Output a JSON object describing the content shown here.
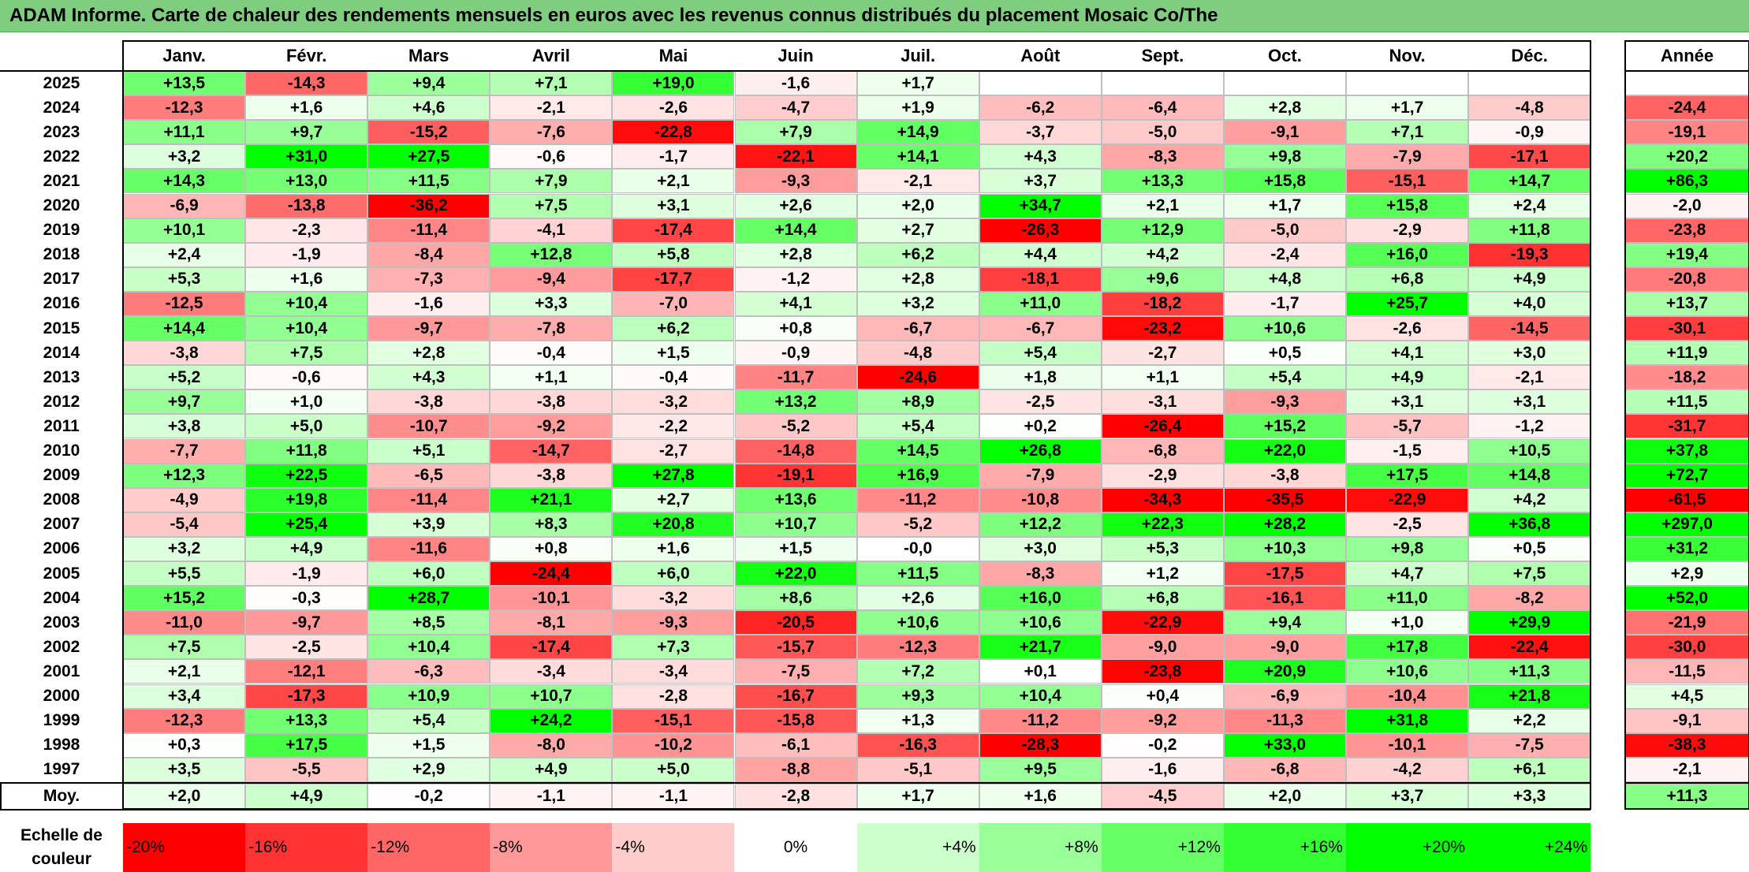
{
  "title": "ADAM Informe. Carte de chaleur des rendements mensuels en euros avec les revenus connus distribués du placement Mosaic Co/The",
  "chart_data": {
    "type": "heatmap",
    "months": [
      "Janv.",
      "Févr.",
      "Mars",
      "Avril",
      "Mai",
      "Juin",
      "Juil.",
      "Août",
      "Sept.",
      "Oct.",
      "Nov.",
      "Déc."
    ],
    "annual_header": "Année",
    "rows": [
      {
        "year": "2025",
        "values": [
          "+13,5",
          "-14,3",
          "+9,4",
          "+7,1",
          "+19,0",
          "-1,6",
          "+1,7",
          "",
          "",
          "",
          "",
          ""
        ],
        "annual": ""
      },
      {
        "year": "2024",
        "values": [
          "-12,3",
          "+1,6",
          "+4,6",
          "-2,1",
          "-2,6",
          "-4,7",
          "+1,9",
          "-6,2",
          "-6,4",
          "+2,8",
          "+1,7",
          "-4,8"
        ],
        "annual": "-24,4"
      },
      {
        "year": "2023",
        "values": [
          "+11,1",
          "+9,7",
          "-15,2",
          "-7,6",
          "-22,8",
          "+7,9",
          "+14,9",
          "-3,7",
          "-5,0",
          "-9,1",
          "+7,1",
          "-0,9"
        ],
        "annual": "-19,1"
      },
      {
        "year": "2022",
        "values": [
          "+3,2",
          "+31,0",
          "+27,5",
          "-0,6",
          "-1,7",
          "-22,1",
          "+14,1",
          "+4,3",
          "-8,3",
          "+9,8",
          "-7,9",
          "-17,1"
        ],
        "annual": "+20,2"
      },
      {
        "year": "2021",
        "values": [
          "+14,3",
          "+13,0",
          "+11,5",
          "+7,9",
          "+2,1",
          "-9,3",
          "-2,1",
          "+3,7",
          "+13,3",
          "+15,8",
          "-15,1",
          "+14,7"
        ],
        "annual": "+86,3"
      },
      {
        "year": "2020",
        "values": [
          "-6,9",
          "-13,8",
          "-36,2",
          "+7,5",
          "+3,1",
          "+2,6",
          "+2,0",
          "+34,7",
          "+2,1",
          "+1,7",
          "+15,8",
          "+2,4"
        ],
        "annual": "-2,0"
      },
      {
        "year": "2019",
        "values": [
          "+10,1",
          "-2,3",
          "-11,4",
          "-4,1",
          "-17,4",
          "+14,4",
          "+2,7",
          "-26,3",
          "+12,9",
          "-5,0",
          "-2,9",
          "+11,8"
        ],
        "annual": "-23,8"
      },
      {
        "year": "2018",
        "values": [
          "+2,4",
          "-1,9",
          "-8,4",
          "+12,8",
          "+5,8",
          "+2,8",
          "+6,2",
          "+4,4",
          "+4,2",
          "-2,4",
          "+16,0",
          "-19,3"
        ],
        "annual": "+19,4"
      },
      {
        "year": "2017",
        "values": [
          "+5,3",
          "+1,6",
          "-7,3",
          "-9,4",
          "-17,7",
          "-1,2",
          "+2,8",
          "-18,1",
          "+9,6",
          "+4,8",
          "+6,8",
          "+4,9"
        ],
        "annual": "-20,8"
      },
      {
        "year": "2016",
        "values": [
          "-12,5",
          "+10,4",
          "-1,6",
          "+3,3",
          "-7,0",
          "+4,1",
          "+3,2",
          "+11,0",
          "-18,2",
          "-1,7",
          "+25,7",
          "+4,0"
        ],
        "annual": "+13,7"
      },
      {
        "year": "2015",
        "values": [
          "+14,4",
          "+10,4",
          "-9,7",
          "-7,8",
          "+6,2",
          "+0,8",
          "-6,7",
          "-6,7",
          "-23,2",
          "+10,6",
          "-2,6",
          "-14,5"
        ],
        "annual": "-30,1"
      },
      {
        "year": "2014",
        "values": [
          "-3,8",
          "+7,5",
          "+2,8",
          "-0,4",
          "+1,5",
          "-0,9",
          "-4,8",
          "+5,4",
          "-2,7",
          "+0,5",
          "+4,1",
          "+3,0"
        ],
        "annual": "+11,9"
      },
      {
        "year": "2013",
        "values": [
          "+5,2",
          "-0,6",
          "+4,3",
          "+1,1",
          "-0,4",
          "-11,7",
          "-24,6",
          "+1,8",
          "+1,1",
          "+5,4",
          "+4,9",
          "-2,1"
        ],
        "annual": "-18,2"
      },
      {
        "year": "2012",
        "values": [
          "+9,7",
          "+1,0",
          "-3,8",
          "-3,8",
          "-3,2",
          "+13,2",
          "+8,9",
          "-2,5",
          "-3,1",
          "-9,3",
          "+3,1",
          "+3,1"
        ],
        "annual": "+11,5"
      },
      {
        "year": "2011",
        "values": [
          "+3,8",
          "+5,0",
          "-10,7",
          "-9,2",
          "-2,2",
          "-5,2",
          "+5,4",
          "+0,2",
          "-26,4",
          "+15,2",
          "-5,7",
          "-1,2"
        ],
        "annual": "-31,7"
      },
      {
        "year": "2010",
        "values": [
          "-7,7",
          "+11,8",
          "+5,1",
          "-14,7",
          "-2,7",
          "-14,8",
          "+14,5",
          "+26,8",
          "-6,8",
          "+22,0",
          "-1,5",
          "+10,5"
        ],
        "annual": "+37,8"
      },
      {
        "year": "2009",
        "values": [
          "+12,3",
          "+22,5",
          "-6,5",
          "-3,8",
          "+27,8",
          "-19,1",
          "+16,9",
          "-7,9",
          "-2,9",
          "-3,8",
          "+17,5",
          "+14,8"
        ],
        "annual": "+72,7"
      },
      {
        "year": "2008",
        "values": [
          "-4,9",
          "+19,8",
          "-11,4",
          "+21,1",
          "+2,7",
          "+13,6",
          "-11,2",
          "-10,8",
          "-34,3",
          "-35,5",
          "-22,9",
          "+4,2"
        ],
        "annual": "-61,5"
      },
      {
        "year": "2007",
        "values": [
          "-5,4",
          "+25,4",
          "+3,9",
          "+8,3",
          "+20,8",
          "+10,7",
          "-5,2",
          "+12,2",
          "+22,3",
          "+28,2",
          "-2,5",
          "+36,8"
        ],
        "annual": "+297,0"
      },
      {
        "year": "2006",
        "values": [
          "+3,2",
          "+4,9",
          "-11,6",
          "+0,8",
          "+1,6",
          "+1,5",
          "-0,0",
          "+3,0",
          "+5,3",
          "+10,3",
          "+9,8",
          "+0,5"
        ],
        "annual": "+31,2"
      },
      {
        "year": "2005",
        "values": [
          "+5,5",
          "-1,9",
          "+6,0",
          "-24,4",
          "+6,0",
          "+22,0",
          "+11,5",
          "-8,3",
          "+1,2",
          "-17,5",
          "+4,7",
          "+7,5"
        ],
        "annual": "+2,9"
      },
      {
        "year": "2004",
        "values": [
          "+15,2",
          "-0,3",
          "+28,7",
          "-10,1",
          "-3,2",
          "+8,6",
          "+2,6",
          "+16,0",
          "+6,8",
          "-16,1",
          "+11,0",
          "-8,2"
        ],
        "annual": "+52,0"
      },
      {
        "year": "2003",
        "values": [
          "-11,0",
          "-9,7",
          "+8,5",
          "-8,1",
          "-9,3",
          "-20,5",
          "+10,6",
          "+10,6",
          "-22,9",
          "+9,4",
          "+1,0",
          "+29,9"
        ],
        "annual": "-21,9"
      },
      {
        "year": "2002",
        "values": [
          "+7,5",
          "-2,5",
          "+10,4",
          "-17,4",
          "+7,3",
          "-15,7",
          "-12,3",
          "+21,7",
          "-9,0",
          "-9,0",
          "+17,8",
          "-22,4"
        ],
        "annual": "-30,0"
      },
      {
        "year": "2001",
        "values": [
          "+2,1",
          "-12,1",
          "-6,3",
          "-3,4",
          "-3,4",
          "-7,5",
          "+7,2",
          "+0,1",
          "-23,8",
          "+20,9",
          "+10,6",
          "+11,3"
        ],
        "annual": "-11,5"
      },
      {
        "year": "2000",
        "values": [
          "+3,4",
          "-17,3",
          "+10,9",
          "+10,7",
          "-2,8",
          "-16,7",
          "+9,3",
          "+10,4",
          "+0,4",
          "-6,9",
          "-10,4",
          "+21,8"
        ],
        "annual": "+4,5"
      },
      {
        "year": "1999",
        "values": [
          "-12,3",
          "+13,3",
          "+5,4",
          "+24,2",
          "-15,1",
          "-15,8",
          "+1,3",
          "-11,2",
          "-9,2",
          "-11,3",
          "+31,8",
          "+2,2"
        ],
        "annual": "-9,1"
      },
      {
        "year": "1998",
        "values": [
          "+0,3",
          "+17,5",
          "+1,5",
          "-8,0",
          "-10,2",
          "-6,1",
          "-16,3",
          "-28,3",
          "-0,2",
          "+33,0",
          "-10,1",
          "-7,5"
        ],
        "annual": "-38,3"
      },
      {
        "year": "1997",
        "values": [
          "+3,5",
          "-5,5",
          "+2,9",
          "+4,9",
          "+5,0",
          "-8,8",
          "-5,1",
          "+9,5",
          "-1,6",
          "-6,8",
          "-4,2",
          "+6,1"
        ],
        "annual": "-2,1"
      }
    ],
    "average": {
      "label": "Moy.",
      "values": [
        "+2,0",
        "+4,9",
        "-0,2",
        "-1,1",
        "-1,1",
        "-2,8",
        "+1,7",
        "+1,6",
        "-4,5",
        "+2,0",
        "+3,7",
        "+3,3"
      ],
      "annual": "+11,3"
    },
    "legend": {
      "label": "Echelle de couleur",
      "entries": [
        {
          "text": "-20%",
          "value": -20
        },
        {
          "text": "-16%",
          "value": -16
        },
        {
          "text": "-12%",
          "value": -12
        },
        {
          "text": "-8%",
          "value": -8
        },
        {
          "text": "-4%",
          "value": -4
        },
        {
          "text": "0%",
          "value": 0
        },
        {
          "text": "+4%",
          "value": 4
        },
        {
          "text": "+8%",
          "value": 8
        },
        {
          "text": "+12%",
          "value": 12
        },
        {
          "text": "+16%",
          "value": 16
        },
        {
          "text": "+20%",
          "value": 20
        },
        {
          "text": "+24%",
          "value": 24
        }
      ]
    },
    "colors": {
      "negative": "#ff0000",
      "neutral": "#ffffff",
      "positive": "#00ff00",
      "title_bg": "#7fcd7f"
    }
  }
}
